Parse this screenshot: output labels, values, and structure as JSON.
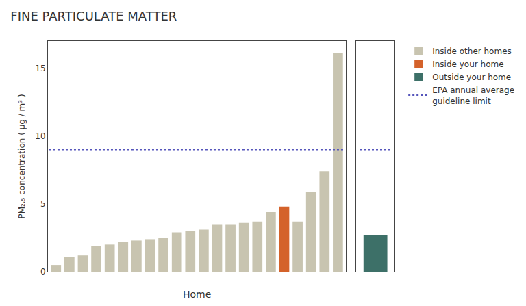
{
  "chart_data": [
    {
      "type": "bar",
      "title": "FINE PARTICULATE MATTER",
      "xlabel": "Home",
      "ylabel": "PM₂.₅ concentration ( μg / m³ )",
      "categories": [
        null,
        null,
        null,
        null,
        null,
        null,
        null,
        null,
        null,
        null,
        null,
        null,
        null,
        null,
        null,
        null,
        null,
        null,
        null,
        null,
        null,
        null
      ],
      "series": [
        {
          "name": "Inside other homes",
          "color": "#c8c4b0",
          "values": [
            0.5,
            1.1,
            1.2,
            1.9,
            2.0,
            2.2,
            2.3,
            2.4,
            2.5,
            2.9,
            3.0,
            3.1,
            3.5,
            3.5,
            3.6,
            3.7,
            4.4,
            null,
            3.7,
            5.9,
            7.4,
            16.1
          ]
        },
        {
          "name": "Inside your home",
          "color": "#d4622a",
          "values": [
            null,
            null,
            null,
            null,
            null,
            null,
            null,
            null,
            null,
            null,
            null,
            null,
            null,
            null,
            null,
            null,
            null,
            4.8,
            null,
            null,
            null,
            null
          ]
        },
        {
          "type": "line",
          "line_style": "dotted",
          "color": "#5555bb",
          "values": [
            9.0,
            9.0,
            9.0,
            9.0,
            9.0,
            9.0,
            9.0,
            9.0,
            9.0,
            9.0,
            9.0,
            9.0,
            9.0,
            9.0,
            9.0,
            9.0,
            9.0,
            9.0,
            9.0,
            9.0,
            9.0,
            9.0
          ]
        }
      ],
      "ylim": [
        0,
        17
      ],
      "yticks": [
        0,
        5,
        10,
        15
      ],
      "grid": false,
      "tick_labels": "y"
    },
    {
      "type": "bar",
      "categories": [
        null
      ],
      "series": [
        {
          "name": "Outside your home",
          "color": "#3d7068",
          "values": [
            2.7
          ]
        },
        {
          "name": "EPA annual average\nguideline limit",
          "type": "line",
          "line_style": "dotted",
          "color": "#5555bb",
          "values": [
            9.0
          ]
        }
      ],
      "ylim": [
        0,
        17
      ],
      "grid": false,
      "tick_labels": false
    }
  ]
}
